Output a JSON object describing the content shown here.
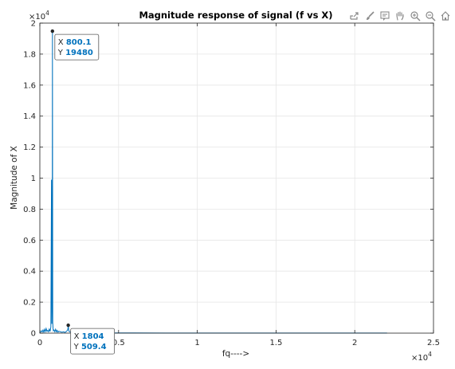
{
  "toolbar": {
    "icons": [
      "export-icon",
      "brush-icon",
      "datatip-icon",
      "pan-icon",
      "zoom-in-icon",
      "zoom-out-icon",
      "home-icon"
    ]
  },
  "chart_data": {
    "type": "line",
    "title": "Magnitude response of signal (f vs X)",
    "xlabel": "fq---->",
    "ylabel": "Magnitude of X",
    "xlim": [
      0,
      25000
    ],
    "ylim": [
      0,
      20000
    ],
    "x_ticks": [
      0,
      5000,
      10000,
      15000,
      20000,
      25000
    ],
    "x_tick_labels": [
      "0",
      "0.5",
      "1",
      "1.5",
      "2",
      "2.5"
    ],
    "y_ticks": [
      0,
      2000,
      4000,
      6000,
      8000,
      10000,
      12000,
      14000,
      16000,
      18000,
      20000
    ],
    "y_tick_labels": [
      "0",
      "0.2",
      "0.4",
      "0.6",
      "0.8",
      "1",
      "1.2",
      "1.4",
      "1.6",
      "1.8",
      "2"
    ],
    "x_exponent": "×10",
    "x_exponent_power": "4",
    "y_exponent": "×10",
    "y_exponent_power": "4",
    "grid": true,
    "line_color": "#0072BD",
    "series": [
      {
        "x": [
          0,
          100,
          150,
          200,
          250,
          300,
          350,
          400,
          450,
          500,
          550,
          600,
          650,
          700,
          740,
          760,
          780,
          790,
          800.1,
          810,
          820,
          840,
          860,
          900,
          950,
          1000,
          1050,
          1100,
          1150,
          1200,
          1300,
          1400,
          1500,
          1600,
          1700,
          1750,
          1780,
          1804,
          1830,
          1860,
          1900,
          2000,
          2100,
          2200,
          2300,
          2400,
          2600,
          3000,
          4000,
          6000,
          8000,
          10000,
          14000,
          18000,
          22050
        ],
        "y": [
          20,
          150,
          80,
          200,
          60,
          250,
          100,
          300,
          120,
          180,
          90,
          260,
          110,
          400,
          9900,
          600,
          2500,
          5000,
          19480,
          9900,
          700,
          300,
          150,
          200,
          90,
          250,
          80,
          180,
          60,
          120,
          90,
          60,
          80,
          50,
          120,
          180,
          260,
          509.4,
          200,
          120,
          80,
          60,
          40,
          50,
          30,
          40,
          20,
          15,
          10,
          10,
          8,
          8,
          6,
          5,
          5
        ]
      }
    ],
    "datatips": [
      {
        "x_label": "X",
        "x_value": "800.1",
        "y_label": "Y",
        "y_value": "19480",
        "x": 800.1,
        "y": 19480
      },
      {
        "x_label": "X",
        "x_value": "1804",
        "y_label": "Y",
        "y_value": "509.4",
        "x": 1804,
        "y": 509.4
      }
    ]
  }
}
